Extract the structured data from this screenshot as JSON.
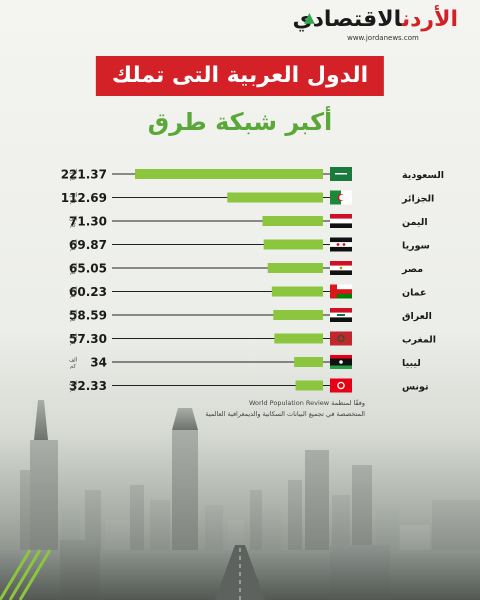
{
  "logo": {
    "title_main": "الاقتصادي",
    "title_accent": "الأردن",
    "url": "www.jordanews.com"
  },
  "header": {
    "title": "الدول العربية التى تملك",
    "subtitle": "أكبر شبكة طرق"
  },
  "unit_label_line1": "ألف",
  "unit_label_line2": "كم",
  "chart_data": {
    "type": "bar",
    "orientation": "horizontal",
    "categories": [
      "السعودية",
      "الجزائر",
      "اليمن",
      "سوريا",
      "مصر",
      "عمان",
      "العراق",
      "المغرب",
      "ليبيا",
      "تونس"
    ],
    "values": [
      221.37,
      112.69,
      71.3,
      69.87,
      65.05,
      60.23,
      58.59,
      57.3,
      34,
      32.33
    ],
    "value_labels": [
      "221.37",
      "112.69",
      "71.30",
      "69.87",
      "65.05",
      "60.23",
      "58.59",
      "57.30",
      "34",
      "32.33"
    ],
    "unit": "ألف كم",
    "bar_color": "#8cc63f",
    "axis_line_color": "#222222",
    "flags": [
      "saudi-flag-icon",
      "algeria-flag-icon",
      "yemen-flag-icon",
      "syria-flag-icon",
      "egypt-flag-icon",
      "oman-flag-icon",
      "iraq-flag-icon",
      "morocco-flag-icon",
      "libya-flag-icon",
      "tunisia-flag-icon"
    ]
  },
  "source": {
    "line1": "وفقًا لمنظمة World Population Review",
    "line2": "المتخصصة في تجميع البيانات السكانية والديمغرافية العالمية"
  },
  "colors": {
    "title_bg": "#d42027",
    "subtitle": "#5aa839",
    "bar": "#8cc63f"
  }
}
